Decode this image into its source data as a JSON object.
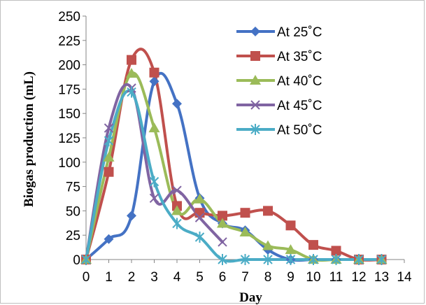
{
  "chart_data": {
    "type": "line",
    "xlabel": "Day",
    "ylabel": "Biogas production (mL)",
    "xlim": [
      0,
      14
    ],
    "ylim": [
      0,
      250
    ],
    "x_ticks": [
      0,
      1,
      2,
      3,
      4,
      5,
      6,
      7,
      8,
      9,
      10,
      11,
      12,
      13,
      14
    ],
    "y_ticks": [
      0,
      25,
      50,
      75,
      100,
      125,
      150,
      175,
      200,
      225,
      250
    ],
    "grid": false,
    "legend_position": "top-right",
    "series": [
      {
        "name": "At 25˚C",
        "color": "#4472c4",
        "marker": "diamond",
        "x": [
          0,
          1,
          2,
          3,
          4,
          5,
          6,
          7,
          8,
          9,
          10,
          11,
          12,
          13
        ],
        "y": [
          0,
          21,
          45,
          183,
          160,
          63,
          37,
          30,
          10,
          0,
          0,
          0,
          0,
          0
        ]
      },
      {
        "name": "At 35˚C",
        "color": "#c0504d",
        "marker": "square",
        "x": [
          0,
          1,
          2,
          3,
          4,
          5,
          6,
          7,
          8,
          9,
          10,
          11,
          12,
          13
        ],
        "y": [
          0,
          90,
          205,
          192,
          55,
          48,
          45,
          48,
          50,
          35,
          15,
          9,
          0,
          0
        ]
      },
      {
        "name": "At 40˚C",
        "color": "#9bbb59",
        "marker": "triangle",
        "x": [
          0,
          1,
          2,
          3,
          4,
          5,
          6,
          7,
          8,
          9,
          10,
          11,
          12,
          13
        ],
        "y": [
          0,
          105,
          191,
          135,
          50,
          62,
          37,
          28,
          14,
          10,
          0,
          0,
          0,
          0
        ]
      },
      {
        "name": "At 45˚C",
        "color": "#8064a2",
        "marker": "x",
        "x": [
          0,
          1,
          2,
          3,
          4,
          5,
          6
        ],
        "y": [
          0,
          135,
          176,
          63,
          71,
          43,
          18
        ]
      },
      {
        "name": "At 50˚C",
        "color": "#4bacc6",
        "marker": "star",
        "x": [
          0,
          1,
          2,
          3,
          4,
          5,
          6,
          7,
          8,
          9,
          10,
          11,
          12,
          13
        ],
        "y": [
          0,
          122,
          172,
          80,
          37,
          23,
          0,
          0,
          0,
          0,
          0,
          0,
          0,
          0
        ]
      }
    ]
  }
}
